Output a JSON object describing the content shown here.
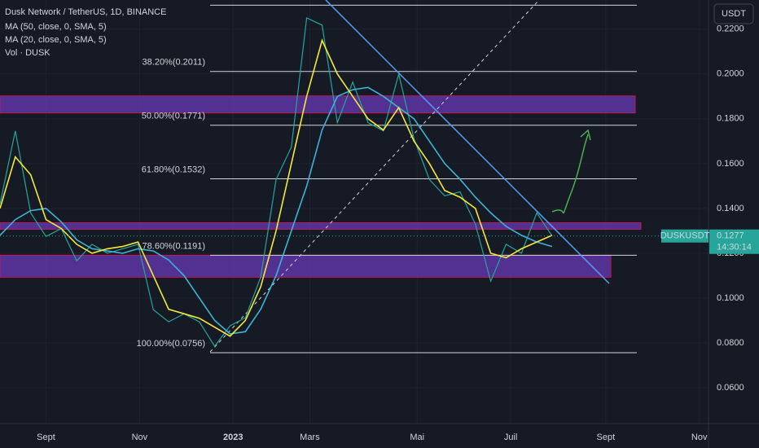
{
  "chart_data": {
    "type": "line",
    "title": "Dusk Network / TetherUS, 1D, BINANCE",
    "volume_label": "Vol · DUSK",
    "currency_button": "USDT",
    "x": [
      -30,
      -20,
      -10,
      0,
      10,
      20,
      30,
      40,
      50,
      60,
      70,
      80,
      90,
      100,
      110,
      120,
      130,
      140,
      150,
      160,
      170,
      180,
      190,
      200,
      210,
      220,
      230,
      240,
      250,
      260,
      270,
      280,
      290,
      300,
      310,
      320,
      330
    ],
    "series": [
      {
        "name": "DUSKUSDT",
        "color": "#26a69a",
        "values": [
          0.142,
          0.1746,
          0.138,
          0.1275,
          0.131,
          0.1166,
          0.124,
          0.12,
          0.122,
          0.124,
          0.0948,
          0.0894,
          0.093,
          0.0894,
          0.0785,
          0.0876,
          0.0912,
          0.1093,
          0.1529,
          0.1674,
          0.225,
          0.2218,
          0.1783,
          0.1964,
          0.1783,
          0.1746,
          0.2,
          0.171,
          0.1529,
          0.1456,
          0.1474,
          0.1329,
          0.1075,
          0.124,
          0.12,
          0.138,
          0.1277
        ]
      },
      {
        "name": "MA (50, close, 0, SMA, 5)",
        "color": "#3cb4d8",
        "values": [
          0.128,
          0.135,
          0.139,
          0.14,
          0.134,
          0.126,
          0.122,
          0.121,
          0.12,
          0.122,
          0.121,
          0.117,
          0.11,
          0.1,
          0.09,
          0.084,
          0.085,
          0.095,
          0.11,
          0.13,
          0.15,
          0.175,
          0.19,
          0.193,
          0.194,
          0.19,
          0.185,
          0.18,
          0.17,
          0.16,
          0.153,
          0.145,
          0.138,
          0.132,
          0.128,
          0.125,
          0.123
        ]
      },
      {
        "name": "MA (20, close, 0, SMA, 5)",
        "color": "#f5e93a",
        "values": [
          0.14,
          0.163,
          0.155,
          0.135,
          0.131,
          0.124,
          0.12,
          0.122,
          0.123,
          0.125,
          0.11,
          0.095,
          0.093,
          0.091,
          0.087,
          0.083,
          0.09,
          0.105,
          0.13,
          0.16,
          0.19,
          0.215,
          0.2,
          0.19,
          0.18,
          0.175,
          0.185,
          0.17,
          0.16,
          0.148,
          0.145,
          0.14,
          0.12,
          0.118,
          0.122,
          0.125,
          0.128
        ]
      }
    ],
    "last_price": {
      "value": 0.1277,
      "label": "0.1277"
    },
    "countdown": "14:30:14",
    "xlim": [
      -30,
      432
    ],
    "ylim": [
      0.044,
      0.233
    ],
    "xticks": [
      {
        "value": 0,
        "label": "Sept"
      },
      {
        "value": 61,
        "label": "Nov"
      },
      {
        "value": 122,
        "label": "2023"
      },
      {
        "value": 172,
        "label": "Mars"
      },
      {
        "value": 242,
        "label": "Mai"
      },
      {
        "value": 303,
        "label": "Juil"
      },
      {
        "value": 365,
        "label": "Sept"
      },
      {
        "value": 426,
        "label": "Nov"
      }
    ],
    "yticks": [
      {
        "value": 0.22,
        "label": "0.2200"
      },
      {
        "value": 0.2,
        "label": "0.2000"
      },
      {
        "value": 0.18,
        "label": "0.1800"
      },
      {
        "value": 0.16,
        "label": "0.1600"
      },
      {
        "value": 0.14,
        "label": "0.1400"
      },
      {
        "value": 0.12,
        "label": "0.1200"
      },
      {
        "value": 0.1,
        "label": "0.1000"
      },
      {
        "value": 0.08,
        "label": "0.0800"
      },
      {
        "value": 0.06,
        "label": "0.0600"
      }
    ],
    "fib_levels": [
      {
        "value": 0.2307
      },
      {
        "value": 0.2011,
        "label": "38.20%(0.2011)"
      },
      {
        "value": 0.1771,
        "label": "50.00%(0.1771)"
      },
      {
        "value": 0.1532,
        "label": "61.80%(0.1532)"
      },
      {
        "value": 0.1191,
        "label": "78.60%(0.1191)"
      },
      {
        "value": 0.0756,
        "label": "100.00%(0.0756)"
      }
    ],
    "zones": [
      [
        0.1902,
        0.1826
      ],
      [
        0.1336,
        0.1307
      ],
      [
        0.1191,
        0.1093
      ]
    ],
    "grid": true
  }
}
